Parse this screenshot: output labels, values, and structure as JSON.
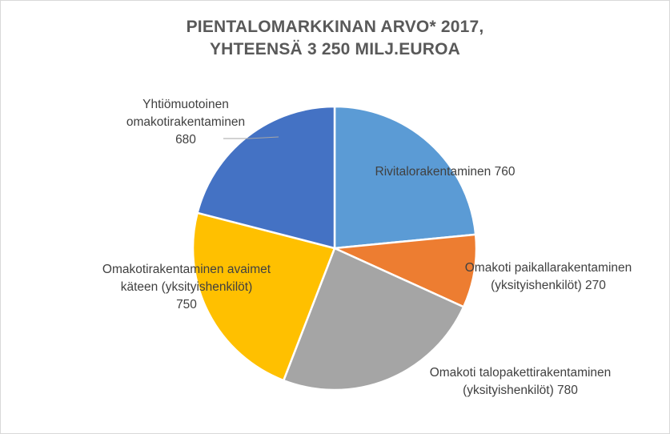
{
  "chart_data": {
    "type": "pie",
    "title": [
      "PIENTALOMARKKINAN ARVO* 2017,",
      "YHTEENSÄ 3 250 MILJ.EUROA"
    ],
    "slices": [
      {
        "label": "Rivitalorakentaminen",
        "value": 760,
        "label_lines": [
          "Rivitalorakentaminen 760"
        ],
        "color": "#5b9bd5"
      },
      {
        "label": "Omakoti paikallarakentaminen (yksityishenkilöt)",
        "value": 270,
        "label_lines": [
          "Omakoti paikallarakentaminen",
          "(yksityishenkilöt) 270"
        ],
        "color": "#ed7d31"
      },
      {
        "label": "Omakoti talopakettirakentaminen (yksityishenkilöt)",
        "value": 780,
        "label_lines": [
          "Omakoti talopakettirakentaminen",
          "(yksityishenkilöt) 780"
        ],
        "color": "#a5a5a5"
      },
      {
        "label": "Omakotirakentaminen avaimet käteen (yksityishenkilöt)",
        "value": 750,
        "label_lines": [
          "Omakotirakentaminen avaimet",
          "käteen (yksityishenkilöt)",
          "750"
        ],
        "color": "#ffc000"
      },
      {
        "label": "Yhtiömuotoinen omakotirakentaminen",
        "value": 680,
        "label_lines": [
          "Yhtiömuotoinen",
          "omakotirakentaminen",
          "680"
        ],
        "color": "#4472c4"
      }
    ],
    "legend": "none"
  }
}
